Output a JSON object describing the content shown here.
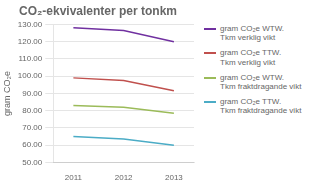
{
  "chart_data": {
    "type": "line",
    "title": "CO₂-ekvivalenter per tonkm",
    "ylabel": "gram CO₂e",
    "x": [
      2011,
      2012,
      2013
    ],
    "series": [
      {
        "name": "gram CO₂e WTW.\nTkm verklig vikt",
        "color": "#7030a0",
        "values": [
          128.0,
          126.5,
          120.0
        ]
      },
      {
        "name": "gram CO₂e TTW.\nTkm verklig vikt",
        "color": "#c0504d",
        "values": [
          99.0,
          97.5,
          91.5
        ]
      },
      {
        "name": "gram CO₂e WTW.\nTkm fraktdragande vikt",
        "color": "#9bbb59",
        "values": [
          83.0,
          82.0,
          78.5
        ]
      },
      {
        "name": "gram CO₂e TTW.\nTkm fraktdragande vikt",
        "color": "#4bacc6",
        "values": [
          65.0,
          63.5,
          60.0
        ]
      }
    ],
    "xlim": [
      2010.6,
      2013.4
    ],
    "xticks": [
      2011,
      2012,
      2013
    ],
    "ylim": [
      50,
      130
    ],
    "yticks": [
      {
        "value": 50,
        "label": "50.00"
      },
      {
        "value": 60,
        "label": "60.00"
      },
      {
        "value": 70,
        "label": "70.00"
      },
      {
        "value": 80,
        "label": "80.00"
      },
      {
        "value": 90,
        "label": "90.00"
      },
      {
        "value": 100,
        "label": "100.00"
      },
      {
        "value": 110,
        "label": "110.00"
      },
      {
        "value": 120,
        "label": "120.00"
      },
      {
        "value": 130,
        "label": "130.00"
      }
    ],
    "grid": "y",
    "legend": "right"
  }
}
